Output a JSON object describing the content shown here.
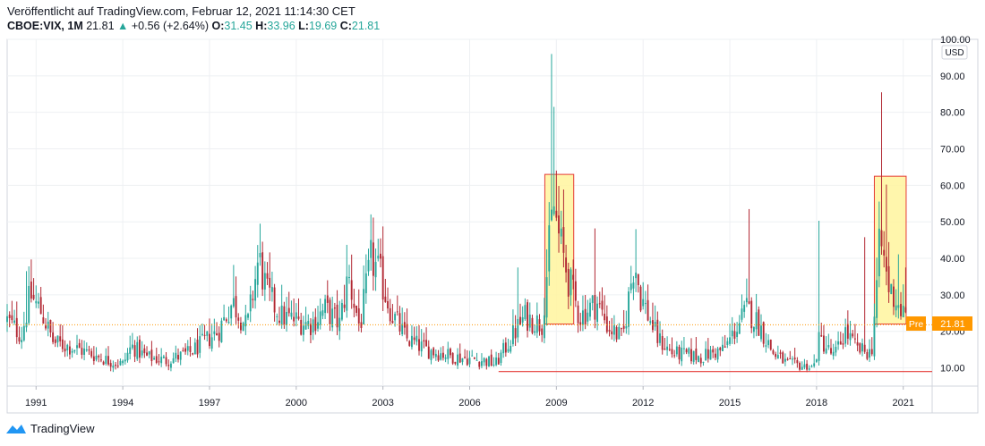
{
  "header": {
    "published": "Veröffentlicht auf TradingView.com, Februar 12, 2021 11:14:30 CET",
    "symbol": "CBOE:VIX, 1M",
    "last": "21.81",
    "arrow": "▲",
    "change": "+0.56 (+2.64%)",
    "o_label": "O:",
    "o_value": "31.45",
    "h_label": "H:",
    "h_value": "33.96",
    "l_label": "L:",
    "l_value": "19.69",
    "c_label": "C:",
    "c_value": "21.81"
  },
  "price_tag": {
    "label": "Pre",
    "value": "21.81"
  },
  "currency": "USD",
  "footer": {
    "brand": "TradingView",
    "icon": "tradingview-logo-icon"
  },
  "colors": {
    "up": "#26a69a",
    "down": "#b22833",
    "highlight_fill": "#fff59d",
    "highlight_stroke": "#e53935",
    "price_line": "#ff9800",
    "support_line": "#e53935"
  },
  "chart_data": {
    "type": "candlestick",
    "interval": "1M",
    "xlim": [
      1990.0,
      2022.0
    ],
    "ylim": [
      5,
      100
    ],
    "y_ticks": [
      "100.00",
      "90.00",
      "80.00",
      "70.00",
      "60.00",
      "50.00",
      "40.00",
      "30.00",
      "20.00",
      "10.00"
    ],
    "x_ticks": [
      "1991",
      "1994",
      "1997",
      "2000",
      "2003",
      "2006",
      "2009",
      "2012",
      "2015",
      "2018",
      "2021"
    ],
    "grid": true,
    "current_price": 21.81,
    "support_level": 9.0,
    "support_range": [
      2007.0,
      2022.0
    ],
    "highlights": [
      {
        "x0": 2008.6,
        "x1": 2009.6,
        "y0": 22,
        "y1": 63
      },
      {
        "x0": 2020.0,
        "x1": 2021.1,
        "y0": 22,
        "y1": 62.5
      }
    ],
    "anchors": [
      [
        1990.0,
        23
      ],
      [
        1990.5,
        19
      ],
      [
        1990.8,
        30
      ],
      [
        1991.2,
        25
      ],
      [
        1991.6,
        17
      ],
      [
        1992.5,
        15
      ],
      [
        1993.5,
        12
      ],
      [
        1994.0,
        11
      ],
      [
        1994.3,
        16
      ],
      [
        1994.8,
        13
      ],
      [
        1995.5,
        12
      ],
      [
        1996.3,
        14
      ],
      [
        1996.8,
        17
      ],
      [
        1997.3,
        20
      ],
      [
        1997.8,
        28
      ],
      [
        1998.3,
        21
      ],
      [
        1998.7,
        40
      ],
      [
        1999.0,
        30
      ],
      [
        1999.5,
        24
      ],
      [
        2000.0,
        23
      ],
      [
        2000.5,
        22
      ],
      [
        2001.0,
        26
      ],
      [
        2001.5,
        22
      ],
      [
        2001.8,
        35
      ],
      [
        2002.2,
        21
      ],
      [
        2002.6,
        40
      ],
      [
        2002.9,
        35
      ],
      [
        2003.3,
        25
      ],
      [
        2003.8,
        18
      ],
      [
        2004.5,
        15
      ],
      [
        2005.5,
        13
      ],
      [
        2006.5,
        12
      ],
      [
        2006.9,
        11
      ],
      [
        2007.5,
        19
      ],
      [
        2007.9,
        24
      ],
      [
        2008.5,
        22
      ],
      [
        2008.9,
        55
      ],
      [
        2009.1,
        45
      ],
      [
        2009.4,
        35
      ],
      [
        2009.8,
        24
      ],
      [
        2010.4,
        28
      ],
      [
        2010.8,
        21
      ],
      [
        2011.3,
        18
      ],
      [
        2011.7,
        40
      ],
      [
        2011.9,
        30
      ],
      [
        2012.5,
        18
      ],
      [
        2013.0,
        14
      ],
      [
        2014.0,
        13
      ],
      [
        2014.8,
        15
      ],
      [
        2015.6,
        26
      ],
      [
        2016.0,
        22
      ],
      [
        2016.5,
        14
      ],
      [
        2017.0,
        11
      ],
      [
        2017.9,
        10
      ],
      [
        2018.1,
        18
      ],
      [
        2018.6,
        13
      ],
      [
        2019.0,
        20
      ],
      [
        2019.4,
        15
      ],
      [
        2019.9,
        14
      ],
      [
        2020.2,
        45
      ],
      [
        2020.5,
        32
      ],
      [
        2020.8,
        28
      ],
      [
        2021.1,
        23
      ]
    ],
    "spikes": [
      {
        "year": 2008.83,
        "high": 96
      },
      {
        "year": 2008.92,
        "high": 81.5
      },
      {
        "year": 2020.21,
        "high": 85.5
      },
      {
        "year": 2015.65,
        "high": 53.5
      },
      {
        "year": 2018.09,
        "high": 50.3
      },
      {
        "year": 2002.59,
        "high": 48.5
      },
      {
        "year": 1998.71,
        "high": 49.5
      },
      {
        "year": 2001.71,
        "high": 43.7
      },
      {
        "year": 2011.71,
        "high": 48
      },
      {
        "year": 2010.37,
        "high": 48.2
      },
      {
        "year": 2020.4,
        "high": 60.2
      },
      {
        "year": 2019.65,
        "high": 45.8
      },
      {
        "year": 2020.83,
        "high": 41.1
      },
      {
        "year": 2007.65,
        "high": 37.5
      },
      {
        "year": 1990.7,
        "high": 36.5
      },
      {
        "year": 1997.8,
        "high": 38.2
      },
      {
        "year": 2021.08,
        "high": 37.5
      }
    ]
  }
}
